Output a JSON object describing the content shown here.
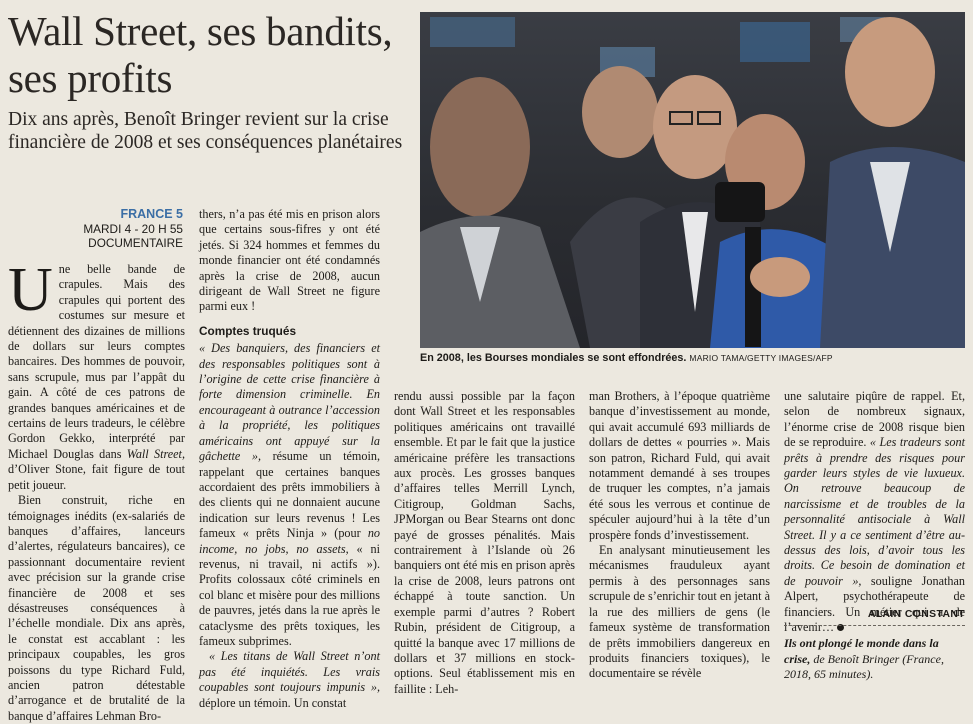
{
  "article": {
    "headline": "Wall Street, ses bandits, ses profits",
    "subtitle": "Dix ans après, Benoît Bringer revient sur la crise financière de 2008 et ses conséquences planétaires",
    "channel": "FRANCE 5",
    "airtime": "MARDI 4 - 20 H 55",
    "genre": "DOCUMENTAIRE",
    "photo_caption": "En 2008, les Bourses mondiales se sont effondrées.",
    "photo_credit": "MARIO TAMA/GETTY IMAGES/AFP",
    "dropcap": "U",
    "col1": {
      "p1": "ne belle bande de crapules. Mais des crapules qui portent des costumes sur mesure et détiennent des dizaines de millions de dollars sur leurs comptes bancaires. Des hommes de pouvoir, sans scrupule, mus par l’appât du gain. A côté de ces patrons de grandes banques américaines et de certains de leurs tradeurs, le célèbre Gordon Gekko, interprété par Michael Douglas dans ",
      "p1_film": "Wall Street,",
      "p1_end": " d’Oliver Stone, fait figure de tout petit joueur.",
      "p2": "Bien construit, riche en témoignages inédits (ex-salariés de banques d’affaires, lanceurs d’alertes, régulateurs bancaires), ce passionnant documentaire revient avec précision sur la grande crise financière de 2008 et ses désastreuses conséquences à l’échelle mondiale. Dix ans après, le constat est accablant : les principaux coupables, les gros poissons du type Richard Fuld, ancien patron détestable d’arrogance et de brutalité de la banque d’affaires Lehman Bro-"
    },
    "col2": {
      "p1": "thers, n’a pas été mis en prison alors que certains sous-fifres y ont été jetés. Si 324 hommes et femmes du monde financier ont été condamnés après la crise de 2008, aucun dirigeant de Wall Street ne figure parmi eux !",
      "subhead": "Comptes truqués",
      "p2_quote": "« Des banquiers, des financiers et des responsables politiques sont à l’origine de cette crise financière à forte dimension criminelle. En encourageant à outrance l’accession à la propriété, les politiques américains ont appuyé sur la gâchette »,",
      "p2_a": " résume un témoin, rappelant que certaines banques accordaient des prêts immobiliers à des clients qui ne donnaient aucune indication sur leurs revenus ! Les fameux « prêts Ninja » (pour ",
      "p2_b": "no income, no jobs, no assets,",
      "p2_c": " « ni revenus, ni travail, ni actifs »). Profits colossaux côté criminels en col blanc et misère pour des millions de pauvres, jetés dans la rue après le cataclysme des prêts toxiques, les fameux subprimes.",
      "p3_quote": "« Les titans de Wall Street n’ont pas été inquiétés. Les vrais coupables sont toujours impunis »,",
      "p3_end": " déplore un témoin. Un constat"
    },
    "col3": {
      "p1": "rendu aussi possible par la façon dont Wall Street et les responsables politiques américains ont travaillé ensemble. Et par le fait que la justice américaine préfère les transactions aux procès. Les grosses banques d’affaires telles Merrill Lynch, Citigroup, Goldman Sachs, JPMorgan ou Bear Stearns ont donc payé de grosses pénalités. Mais contrairement à l’Islande où 26 banquiers ont été mis en prison après la crise de 2008, leurs patrons ont échappé à toute sanction. Un exemple parmi d’autres ? Robert Rubin, président de Citigroup, a quitté la banque avec 17 millions de dollars et 37 millions en stock-options. Seul établissement mis en faillite : Leh-"
    },
    "col4": {
      "p1": "man Brothers, à l’époque quatrième banque d’investissement au monde, qui avait accumulé 693 milliards de dollars de dettes « pourries ». Mais son patron, Richard Fuld, qui avait notamment demandé à ses troupes de truquer les comptes, n’a jamais été sous les verrous et continue de spéculer aujourd’hui à la tête d’un prospère fonds d’investissement.",
      "p2": "En analysant minutieusement les mécanismes frauduleux ayant permis à des personnages sans scrupule de s’enrichir tout en jetant à la rue des milliers de gens (le fameux système de transformation de prêts immobiliers dangereux en produits financiers toxiques), le documentaire se révèle"
    },
    "col5": {
      "p1_a": "une salutaire piqûre de rappel. Et, selon de nombreux signaux, l’énorme crise de 2008 risque bien de se reproduire. ",
      "p1_quote": "« Les tradeurs sont prêts à prendre des risques pour garder leurs styles de vie luxueux. On retrouve beaucoup de narcissisme et de troubles de la personnalité antisociale à Wall Street. Il y a ce sentiment d’être au-dessus des lois, d’avoir tous les droits. Ce besoin de domination et de pouvoir »,",
      "p1_end": " souligne Jonathan Alpert, psychothérapeute de financiers. Un métier qui a de l’avenir…"
    },
    "author": "ALAIN CONSTANT",
    "credits_title": "Ils ont plongé le monde dans la crise,",
    "credits_rest": " de Benoît Bringer (France, 2018, 65 minutes)."
  },
  "colors": {
    "paper": "#ece8df",
    "ink": "#1d1b18",
    "channel_blue": "#3b6ea5"
  }
}
